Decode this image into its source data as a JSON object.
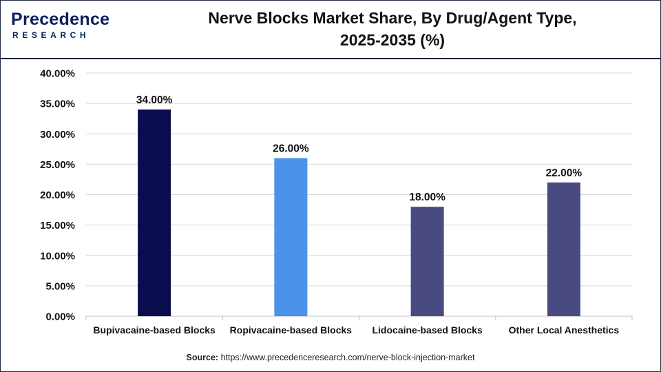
{
  "header": {
    "logo_main": "Precedence",
    "logo_sub": "RESEARCH",
    "title_line1": "Nerve Blocks Market Share, By Drug/Agent Type,",
    "title_line2": "2025-2035 (%)"
  },
  "source": {
    "label": "Source:",
    "url": "https://www.precedenceresearch.com/nerve-block-injection-market"
  },
  "chart_data": {
    "type": "bar",
    "categories": [
      "Bupivacaine-based Blocks",
      "Ropivacaine-based Blocks",
      "Lidocaine-based Blocks",
      "Other Local Anesthetics"
    ],
    "values": [
      34.0,
      26.0,
      18.0,
      22.0
    ],
    "data_labels": [
      "34.00%",
      "26.00%",
      "18.00%",
      "22.00%"
    ],
    "colors": [
      "#0a0d4d",
      "#4a92ea",
      "#4a4a82",
      "#4a4a82"
    ],
    "ylim": [
      0,
      40
    ],
    "yticks": [
      0,
      5,
      10,
      15,
      20,
      25,
      30,
      35,
      40
    ],
    "ytick_labels": [
      "0.00%",
      "5.00%",
      "10.00%",
      "15.00%",
      "20.00%",
      "25.00%",
      "30.00%",
      "35.00%",
      "40.00%"
    ],
    "grid": true,
    "legend": "none"
  }
}
